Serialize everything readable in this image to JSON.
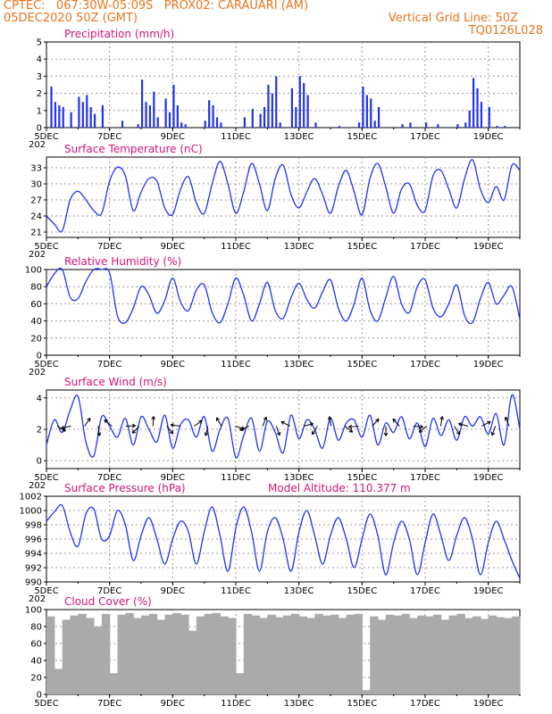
{
  "header": {
    "line1": "CPTEC:   067:30W-05:09S   PROX02: CARAUARI (AM)",
    "line2": "05DEC2020 50Z (GMT)",
    "grid_info": "Vertical Grid Line: 50Z",
    "run_id": "TQ0126L028"
  },
  "colors": {
    "header": "#e8741c",
    "panel_title": "#d4147a",
    "series": "#2233ee",
    "cloud": "#aaaaaa",
    "arrow": "#000000",
    "grid": "#999999"
  },
  "x_axis": {
    "type": "date",
    "start": "05DEC2020",
    "end": "20DEC2020",
    "major_ticks": [
      "5DEC",
      "7DEC",
      "9DEC",
      "11DEC",
      "13DEC",
      "15DEC",
      "17DEC",
      "19DEC"
    ],
    "stray_label": "202"
  },
  "chart_data": [
    {
      "type": "bar",
      "title": "Precipitation (mm/h)",
      "ylim": [
        0,
        5
      ],
      "yticks": [
        0,
        1,
        2,
        3,
        4,
        5
      ],
      "grid": true,
      "x": [
        "05DEC 03Z",
        "05DEC 06Z",
        "05DEC 09Z",
        "05DEC 12Z",
        "05DEC 18Z",
        "06DEC 00Z",
        "06DEC 03Z",
        "06DEC 06Z",
        "06DEC 09Z",
        "06DEC 12Z",
        "06DEC 18Z",
        "07DEC 09Z",
        "07DEC 21Z",
        "08DEC 00Z",
        "08DEC 03Z",
        "08DEC 06Z",
        "08DEC 09Z",
        "08DEC 12Z",
        "08DEC 18Z",
        "08DEC 21Z",
        "09DEC 00Z",
        "09DEC 03Z",
        "09DEC 06Z",
        "09DEC 09Z",
        "10DEC 00Z",
        "10DEC 03Z",
        "10DEC 06Z",
        "10DEC 09Z",
        "10DEC 12Z",
        "11DEC 06Z",
        "11DEC 12Z",
        "11DEC 18Z",
        "11DEC 21Z",
        "12DEC 00Z",
        "12DEC 03Z",
        "12DEC 06Z",
        "12DEC 09Z",
        "12DEC 18Z",
        "12DEC 21Z",
        "13DEC 00Z",
        "13DEC 03Z",
        "13DEC 06Z",
        "13DEC 12Z",
        "14DEC 06Z",
        "14DEC 21Z",
        "15DEC 00Z",
        "15DEC 03Z",
        "15DEC 06Z",
        "15DEC 09Z",
        "15DEC 12Z",
        "16DEC 06Z",
        "16DEC 12Z",
        "17DEC 00Z",
        "17DEC 09Z",
        "18DEC 00Z",
        "18DEC 06Z",
        "18DEC 09Z",
        "18DEC 12Z",
        "18DEC 15Z",
        "18DEC 18Z",
        "19DEC 00Z",
        "19DEC 06Z",
        "19DEC 12Z"
      ],
      "values": [
        2.4,
        1.5,
        1.3,
        1.2,
        0.9,
        1.8,
        1.5,
        1.9,
        1.2,
        0.8,
        1.3,
        0.4,
        0.2,
        2.8,
        1.5,
        1.3,
        2.1,
        0.6,
        1.7,
        0.9,
        2.5,
        1.3,
        0.3,
        0.2,
        0.4,
        1.6,
        1.3,
        0.6,
        0.3,
        0.6,
        1.1,
        0.8,
        1.2,
        2.5,
        2.0,
        3.0,
        0.3,
        2.3,
        1.2,
        3.0,
        2.6,
        1.9,
        0.3,
        0.1,
        0.3,
        2.4,
        1.9,
        1.7,
        0.4,
        1.2,
        0.2,
        0.3,
        0.3,
        0.2,
        0.2,
        0.3,
        1.0,
        2.9,
        2.3,
        1.5,
        1.2,
        0.1,
        0.1
      ]
    },
    {
      "type": "line",
      "title": "Surface Temperature (nC)",
      "ylim": [
        20,
        35
      ],
      "yticks": [
        21,
        24,
        27,
        30,
        33
      ],
      "grid": true,
      "series": [
        {
          "x": [
            "05DEC 00Z",
            "05DEC 06Z",
            "05DEC 12Z",
            "05DEC 18Z",
            "06DEC 00Z",
            "06DEC 06Z",
            "06DEC 12Z",
            "06DEC 18Z",
            "07DEC 00Z",
            "07DEC 06Z",
            "07DEC 12Z",
            "07DEC 18Z",
            "08DEC 00Z",
            "08DEC 06Z",
            "08DEC 12Z",
            "08DEC 18Z",
            "09DEC 00Z",
            "09DEC 06Z",
            "09DEC 12Z",
            "09DEC 18Z",
            "10DEC 00Z",
            "10DEC 06Z",
            "10DEC 12Z",
            "10DEC 18Z",
            "11DEC 00Z",
            "11DEC 06Z",
            "11DEC 12Z",
            "11DEC 18Z",
            "12DEC 00Z",
            "12DEC 06Z",
            "12DEC 12Z",
            "12DEC 18Z",
            "13DEC 00Z",
            "13DEC 06Z",
            "13DEC 12Z",
            "13DEC 18Z",
            "14DEC 00Z",
            "14DEC 06Z",
            "14DEC 12Z",
            "14DEC 18Z",
            "15DEC 00Z",
            "15DEC 06Z",
            "15DEC 12Z",
            "15DEC 18Z",
            "16DEC 00Z",
            "16DEC 06Z",
            "16DEC 12Z",
            "16DEC 18Z",
            "17DEC 00Z",
            "17DEC 06Z",
            "17DEC 12Z",
            "17DEC 18Z",
            "18DEC 00Z",
            "18DEC 06Z",
            "18DEC 12Z",
            "18DEC 18Z",
            "19DEC 00Z",
            "19DEC 06Z",
            "19DEC 12Z",
            "19DEC 18Z",
            "20DEC 00Z"
          ],
          "values": [
            24.0,
            22.5,
            21.2,
            27.0,
            28.6,
            27.0,
            25.0,
            24.5,
            30.5,
            33.1,
            31.5,
            25.0,
            28.5,
            31.0,
            30.5,
            25.5,
            24.3,
            29.0,
            31.3,
            26.5,
            24.5,
            30.0,
            34.2,
            30.0,
            24.5,
            28.5,
            33.8,
            30.0,
            25.0,
            31.0,
            33.5,
            28.0,
            25.5,
            28.5,
            31.0,
            28.0,
            24.5,
            29.5,
            32.5,
            28.5,
            24.2,
            31.0,
            33.8,
            29.5,
            24.5,
            29.0,
            30.0,
            26.0,
            25.0,
            31.5,
            32.5,
            29.0,
            25.5,
            31.0,
            34.5,
            29.0,
            26.5,
            29.5,
            27.0,
            33.5,
            32.5
          ]
        }
      ]
    },
    {
      "type": "line",
      "title": "Relative Humidity (%)",
      "ylim": [
        0,
        100
      ],
      "yticks": [
        0,
        20,
        40,
        60,
        80,
        100
      ],
      "grid": true,
      "series": [
        {
          "x": [
            "05DEC 00Z",
            "05DEC 06Z",
            "05DEC 12Z",
            "05DEC 18Z",
            "06DEC 00Z",
            "06DEC 06Z",
            "06DEC 12Z",
            "06DEC 18Z",
            "07DEC 00Z",
            "07DEC 06Z",
            "07DEC 12Z",
            "07DEC 18Z",
            "08DEC 00Z",
            "08DEC 06Z",
            "08DEC 12Z",
            "08DEC 18Z",
            "09DEC 00Z",
            "09DEC 06Z",
            "09DEC 12Z",
            "09DEC 18Z",
            "10DEC 00Z",
            "10DEC 06Z",
            "10DEC 12Z",
            "10DEC 18Z",
            "11DEC 00Z",
            "11DEC 06Z",
            "11DEC 12Z",
            "11DEC 18Z",
            "12DEC 00Z",
            "12DEC 06Z",
            "12DEC 12Z",
            "12DEC 18Z",
            "13DEC 00Z",
            "13DEC 06Z",
            "13DEC 12Z",
            "13DEC 18Z",
            "14DEC 00Z",
            "14DEC 06Z",
            "14DEC 12Z",
            "14DEC 18Z",
            "15DEC 00Z",
            "15DEC 06Z",
            "15DEC 12Z",
            "15DEC 18Z",
            "16DEC 00Z",
            "16DEC 06Z",
            "16DEC 12Z",
            "16DEC 18Z",
            "17DEC 00Z",
            "17DEC 06Z",
            "17DEC 12Z",
            "17DEC 18Z",
            "18DEC 00Z",
            "18DEC 06Z",
            "18DEC 12Z",
            "18DEC 18Z",
            "19DEC 00Z",
            "19DEC 06Z",
            "19DEC 12Z",
            "19DEC 18Z",
            "20DEC 00Z"
          ],
          "values": [
            80,
            95,
            100,
            68,
            66,
            86,
            100,
            100,
            96,
            46,
            38,
            55,
            80,
            70,
            49,
            64,
            90,
            62,
            52,
            76,
            82,
            50,
            38,
            60,
            90,
            70,
            40,
            60,
            85,
            52,
            43,
            67,
            84,
            65,
            55,
            74,
            88,
            55,
            40,
            60,
            90,
            53,
            40,
            67,
            92,
            60,
            50,
            80,
            88,
            55,
            45,
            60,
            82,
            46,
            38,
            66,
            85,
            60,
            70,
            80,
            42
          ]
        }
      ]
    },
    {
      "type": "line",
      "title": "Surface Wind (m/s)",
      "ylim": [
        -0.5,
        4.5
      ],
      "yticks": [
        0,
        2,
        4
      ],
      "grid": true,
      "series": [
        {
          "x": [
            "05DEC 00Z",
            "05DEC 06Z",
            "05DEC 12Z",
            "05DEC 18Z",
            "06DEC 00Z",
            "06DEC 06Z",
            "06DEC 12Z",
            "06DEC 18Z",
            "07DEC 00Z",
            "07DEC 06Z",
            "07DEC 12Z",
            "07DEC 18Z",
            "08DEC 00Z",
            "08DEC 06Z",
            "08DEC 12Z",
            "08DEC 18Z",
            "09DEC 00Z",
            "09DEC 06Z",
            "09DEC 12Z",
            "09DEC 18Z",
            "10DEC 00Z",
            "10DEC 06Z",
            "10DEC 12Z",
            "10DEC 18Z",
            "11DEC 00Z",
            "11DEC 06Z",
            "11DEC 12Z",
            "11DEC 18Z",
            "12DEC 00Z",
            "12DEC 06Z",
            "12DEC 12Z",
            "12DEC 18Z",
            "13DEC 00Z",
            "13DEC 06Z",
            "13DEC 12Z",
            "13DEC 18Z",
            "14DEC 00Z",
            "14DEC 06Z",
            "14DEC 12Z",
            "14DEC 18Z",
            "15DEC 00Z",
            "15DEC 06Z",
            "15DEC 12Z",
            "15DEC 18Z",
            "16DEC 00Z",
            "16DEC 06Z",
            "16DEC 12Z",
            "16DEC 18Z",
            "17DEC 00Z",
            "17DEC 06Z",
            "17DEC 12Z",
            "17DEC 18Z",
            "18DEC 00Z",
            "18DEC 06Z",
            "18DEC 12Z",
            "18DEC 18Z",
            "19DEC 00Z",
            "19DEC 06Z",
            "19DEC 12Z",
            "19DEC 18Z",
            "20DEC 00Z"
          ],
          "values": [
            1.0,
            2.6,
            1.8,
            3.2,
            4.1,
            1.2,
            0.3,
            2.8,
            2.2,
            1.5,
            2.7,
            1.0,
            2.8,
            2.0,
            1.2,
            2.9,
            0.8,
            2.3,
            2.6,
            1.5,
            2.8,
            0.6,
            2.0,
            2.7,
            0.2,
            1.6,
            2.7,
            0.6,
            2.5,
            1.8,
            0.5,
            2.9,
            1.4,
            2.6,
            2.0,
            0.8,
            2.7,
            1.3,
            2.4,
            2.6,
            1.5,
            2.9,
            1.0,
            2.4,
            1.8,
            2.8,
            1.4,
            2.4,
            0.9,
            2.7,
            1.6,
            2.6,
            1.3,
            2.8,
            2.2,
            2.8,
            1.7,
            3.0,
            1.0,
            4.2,
            2.0
          ]
        }
      ],
      "wind_arrows_count": 34
    },
    {
      "type": "line",
      "title": "Surface Pressure (hPa)",
      "annotation": "Model Altitude: 110.377 m",
      "ylim": [
        990,
        1002
      ],
      "yticks": [
        990,
        992,
        994,
        996,
        998,
        1000,
        1002
      ],
      "grid": true,
      "series": [
        {
          "x": [
            "05DEC 00Z",
            "05DEC 06Z",
            "05DEC 12Z",
            "05DEC 18Z",
            "06DEC 00Z",
            "06DEC 06Z",
            "06DEC 12Z",
            "06DEC 18Z",
            "07DEC 00Z",
            "07DEC 06Z",
            "07DEC 12Z",
            "07DEC 18Z",
            "08DEC 00Z",
            "08DEC 06Z",
            "08DEC 12Z",
            "08DEC 18Z",
            "09DEC 00Z",
            "09DEC 06Z",
            "09DEC 12Z",
            "09DEC 18Z",
            "10DEC 00Z",
            "10DEC 06Z",
            "10DEC 12Z",
            "10DEC 18Z",
            "11DEC 00Z",
            "11DEC 06Z",
            "11DEC 12Z",
            "11DEC 18Z",
            "12DEC 00Z",
            "12DEC 06Z",
            "12DEC 12Z",
            "12DEC 18Z",
            "13DEC 00Z",
            "13DEC 06Z",
            "13DEC 12Z",
            "13DEC 18Z",
            "14DEC 00Z",
            "14DEC 06Z",
            "14DEC 12Z",
            "14DEC 18Z",
            "15DEC 00Z",
            "15DEC 06Z",
            "15DEC 12Z",
            "15DEC 18Z",
            "16DEC 00Z",
            "16DEC 06Z",
            "16DEC 12Z",
            "16DEC 18Z",
            "17DEC 00Z",
            "17DEC 06Z",
            "17DEC 12Z",
            "17DEC 18Z",
            "18DEC 00Z",
            "18DEC 06Z",
            "18DEC 12Z",
            "18DEC 18Z",
            "19DEC 00Z",
            "19DEC 06Z",
            "19DEC 12Z",
            "19DEC 18Z",
            "20DEC 00Z"
          ],
          "values": [
            998.5,
            999.8,
            1000.7,
            997.0,
            995.0,
            999.5,
            1000.2,
            996.0,
            996.5,
            1000.0,
            998.0,
            993.0,
            996.5,
            999.0,
            996.0,
            992.5,
            996.0,
            998.5,
            997.0,
            992.5,
            997.0,
            1000.5,
            996.5,
            991.5,
            997.5,
            1000.5,
            997.0,
            991.5,
            997.0,
            999.0,
            996.0,
            991.5,
            997.0,
            1000.0,
            996.5,
            992.5,
            996.5,
            999.0,
            996.0,
            992.0,
            996.0,
            999.5,
            996.5,
            991.0,
            995.5,
            998.5,
            996.0,
            991.0,
            995.5,
            999.5,
            996.5,
            993.0,
            996.5,
            999.0,
            996.0,
            991.0,
            995.5,
            998.5,
            996.0,
            993.0,
            990.5
          ]
        }
      ]
    },
    {
      "type": "bar",
      "title": "Cloud Cover (%)",
      "ylim": [
        0,
        100
      ],
      "yticks": [
        0,
        20,
        40,
        60,
        80,
        100
      ],
      "grid": true,
      "x": [
        "05DEC 00Z",
        "05DEC 06Z",
        "05DEC 12Z",
        "05DEC 18Z",
        "06DEC 00Z",
        "06DEC 06Z",
        "06DEC 12Z",
        "06DEC 18Z",
        "07DEC 00Z",
        "07DEC 06Z",
        "07DEC 12Z",
        "07DEC 18Z",
        "08DEC 00Z",
        "08DEC 06Z",
        "08DEC 12Z",
        "08DEC 18Z",
        "09DEC 00Z",
        "09DEC 06Z",
        "09DEC 12Z",
        "09DEC 18Z",
        "10DEC 00Z",
        "10DEC 06Z",
        "10DEC 12Z",
        "10DEC 18Z",
        "11DEC 00Z",
        "11DEC 06Z",
        "11DEC 12Z",
        "11DEC 18Z",
        "12DEC 00Z",
        "12DEC 06Z",
        "12DEC 12Z",
        "12DEC 18Z",
        "13DEC 00Z",
        "13DEC 06Z",
        "13DEC 12Z",
        "13DEC 18Z",
        "14DEC 00Z",
        "14DEC 06Z",
        "14DEC 12Z",
        "14DEC 18Z",
        "15DEC 00Z",
        "15DEC 06Z",
        "15DEC 12Z",
        "15DEC 18Z",
        "16DEC 00Z",
        "16DEC 06Z",
        "16DEC 12Z",
        "16DEC 18Z",
        "17DEC 00Z",
        "17DEC 06Z",
        "17DEC 12Z",
        "17DEC 18Z",
        "18DEC 00Z",
        "18DEC 06Z",
        "18DEC 12Z",
        "18DEC 18Z",
        "19DEC 00Z",
        "19DEC 06Z",
        "19DEC 12Z",
        "19DEC 18Z"
      ],
      "values": [
        92,
        30,
        88,
        93,
        95,
        90,
        80,
        95,
        25,
        94,
        96,
        90,
        93,
        95,
        88,
        94,
        96,
        94,
        75,
        92,
        95,
        96,
        92,
        90,
        25,
        95,
        93,
        90,
        94,
        91,
        93,
        95,
        92,
        90,
        95,
        93,
        94,
        90,
        94,
        95,
        5,
        92,
        88,
        94,
        93,
        95,
        90,
        93,
        92,
        94,
        88,
        93,
        95,
        90,
        92,
        89,
        93,
        91,
        90,
        92
      ]
    }
  ]
}
